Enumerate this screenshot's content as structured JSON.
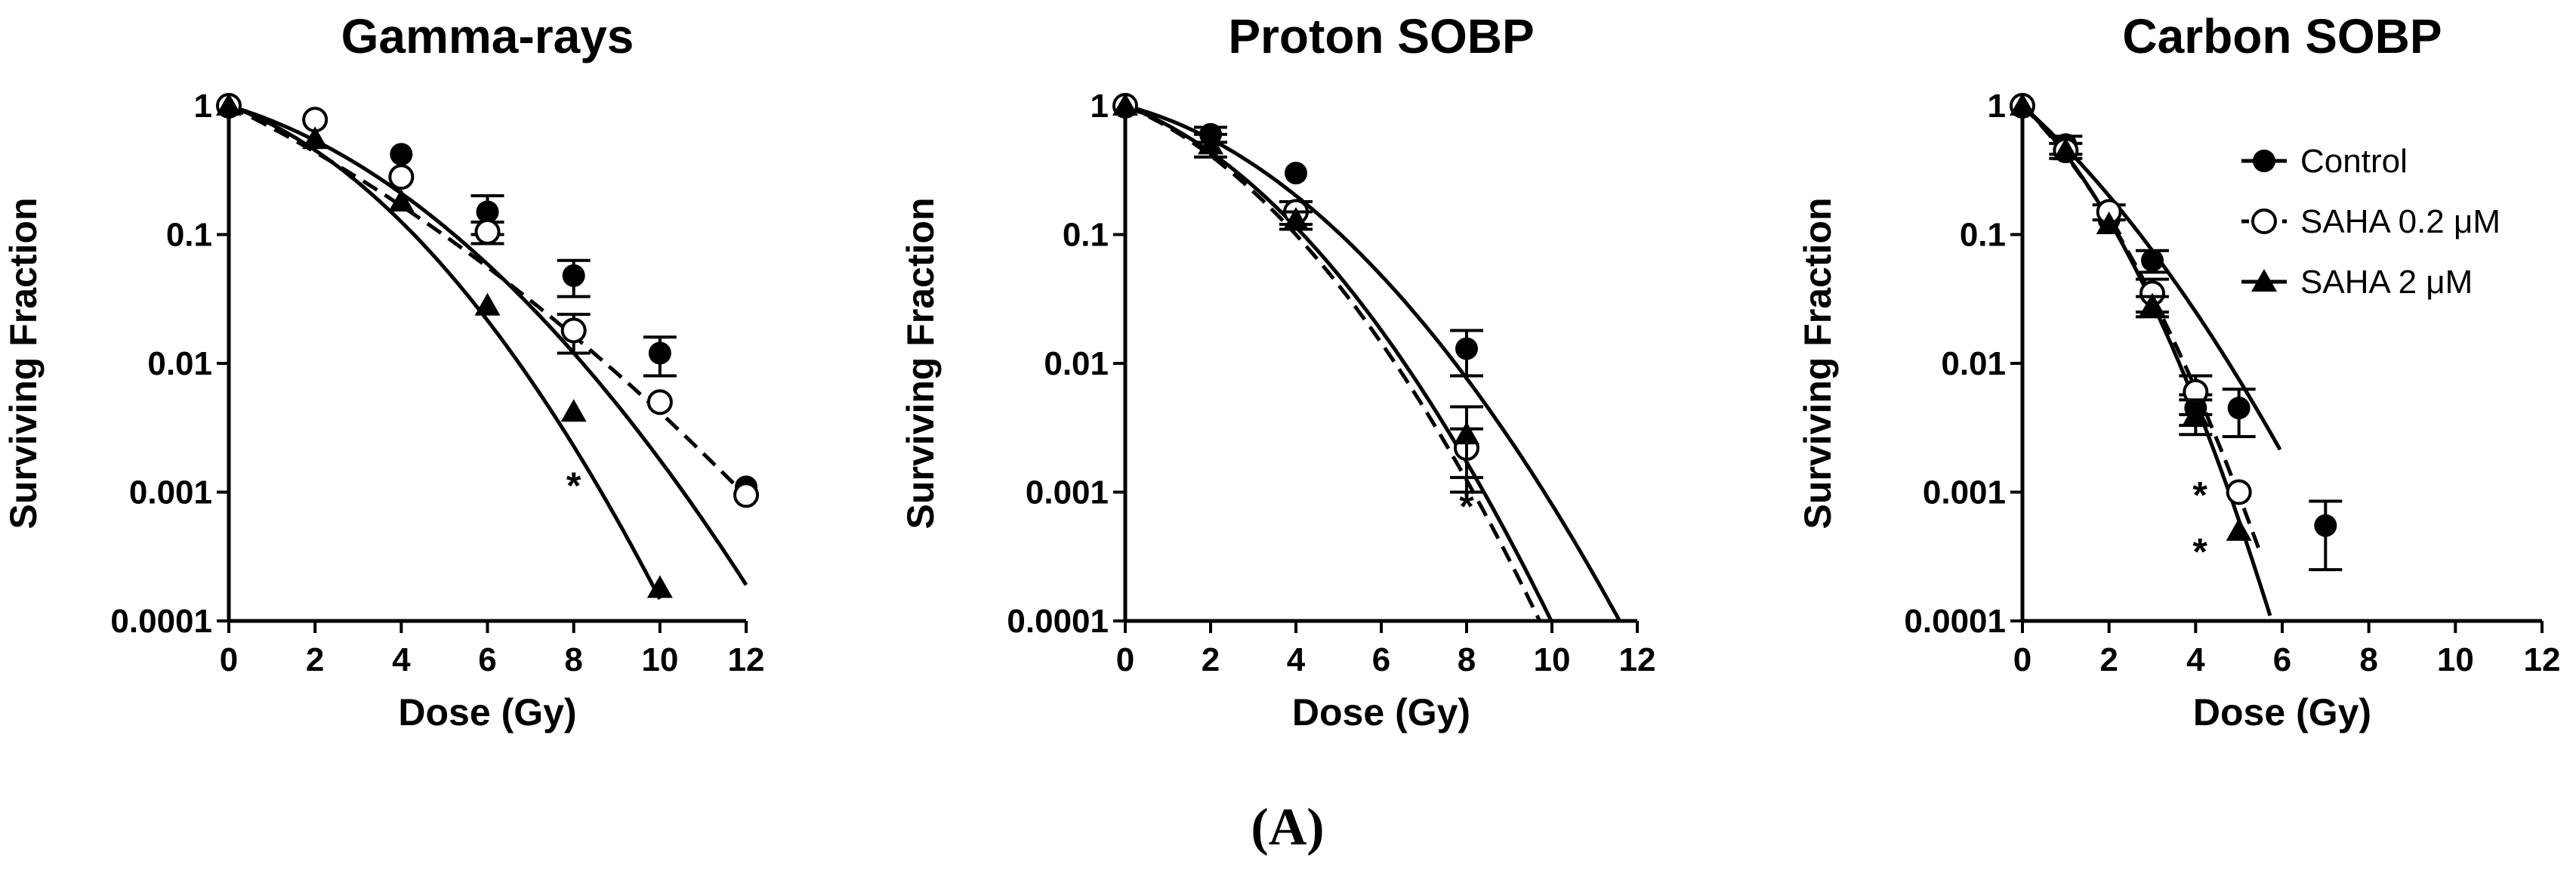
{
  "caption": "(A)",
  "chart_data": [
    {
      "type": "scatter",
      "title": "Gamma-rays",
      "xlabel": "Dose (Gy)",
      "ylabel": "Surviving Fraction",
      "xlim": [
        0,
        12
      ],
      "ylim": [
        0.0001,
        1
      ],
      "yscale": "log",
      "xticks": [
        0,
        2,
        4,
        6,
        8,
        10,
        12
      ],
      "xtick_labels": [
        "0",
        "2",
        "4",
        "6",
        "8",
        "10",
        "12"
      ],
      "yticks": [
        1,
        0.1,
        0.01,
        0.001,
        0.0001
      ],
      "ytick_labels": [
        "1",
        "0.1",
        "0.01",
        "0.001",
        "0.0001"
      ],
      "grid": false,
      "series": [
        {
          "name": "Control",
          "marker": "filled-circle",
          "line": "solid",
          "x": [
            0,
            2,
            4,
            6,
            8,
            10,
            12
          ],
          "y": [
            1,
            0.78,
            0.42,
            0.15,
            0.048,
            0.012,
            0.0011
          ],
          "yerr": [
            0,
            0,
            0,
            0.05,
            0.015,
            0.004,
            0
          ]
        },
        {
          "name": "SAHA 0.2 μM",
          "marker": "open-circle",
          "line": "dashed",
          "x": [
            0,
            2,
            4,
            6,
            8,
            10,
            12
          ],
          "y": [
            1,
            0.78,
            0.28,
            0.105,
            0.018,
            0.005,
            0.00095
          ],
          "yerr": [
            0,
            0,
            0,
            0.02,
            0.006,
            0,
            0
          ]
        },
        {
          "name": "SAHA 2 μM",
          "marker": "filled-triangle",
          "line": "solid",
          "x": [
            0,
            2,
            4,
            6,
            8,
            10
          ],
          "y": [
            1,
            0.55,
            0.18,
            0.028,
            0.0042,
            0.00018
          ],
          "yerr": [
            0,
            0,
            0,
            0,
            0,
            0
          ]
        }
      ],
      "annotations": [
        {
          "text": "*",
          "x": 8,
          "y": 0.0013
        }
      ]
    },
    {
      "type": "scatter",
      "title": "Proton SOBP",
      "xlabel": "Dose (Gy)",
      "ylabel": "Surviving Fraction",
      "xlim": [
        0,
        12
      ],
      "ylim": [
        0.0001,
        1
      ],
      "yscale": "log",
      "xticks": [
        0,
        2,
        4,
        6,
        8,
        10,
        12
      ],
      "xtick_labels": [
        "0",
        "2",
        "4",
        "6",
        "8",
        "10",
        "12"
      ],
      "yticks": [
        1,
        0.1,
        0.01,
        0.001,
        0.0001
      ],
      "ytick_labels": [
        "1",
        "0.1",
        "0.01",
        "0.001",
        "0.0001"
      ],
      "grid": false,
      "series": [
        {
          "name": "Control",
          "marker": "filled-circle",
          "line": "solid",
          "x": [
            0,
            2,
            4,
            8
          ],
          "y": [
            1,
            0.6,
            0.3,
            0.013
          ],
          "yerr": [
            0,
            0.08,
            0,
            0.005
          ]
        },
        {
          "name": "SAHA 0.2 μM",
          "marker": "open-circle",
          "line": "dashed",
          "x": [
            0,
            4,
            8
          ],
          "y": [
            1,
            0.15,
            0.0022
          ],
          "yerr": [
            0,
            0.03,
            0.0009
          ]
        },
        {
          "name": "SAHA 2 μM",
          "marker": "filled-triangle",
          "line": "solid",
          "x": [
            0,
            2,
            4,
            8
          ],
          "y": [
            1,
            0.5,
            0.13,
            0.0028
          ],
          "yerr": [
            0,
            0.1,
            0.02,
            0.0018
          ]
        }
      ],
      "annotations": [
        {
          "text": "*",
          "x": 8,
          "y": 0.0009
        }
      ]
    },
    {
      "type": "scatter",
      "title": "Carbon SOBP",
      "xlabel": "Dose (Gy)",
      "ylabel": "Surviving Fraction",
      "xlim": [
        0,
        12
      ],
      "ylim": [
        0.0001,
        1
      ],
      "yscale": "log",
      "xticks": [
        0,
        2,
        4,
        6,
        8,
        10,
        12
      ],
      "xtick_labels": [
        "0",
        "2",
        "4",
        "6",
        "8",
        "10",
        "12"
      ],
      "yticks": [
        1,
        0.1,
        0.01,
        0.001,
        0.0001
      ],
      "ytick_labels": [
        "1",
        "0.1",
        "0.01",
        "0.001",
        "0.0001"
      ],
      "grid": false,
      "legend": "top-right",
      "series": [
        {
          "name": "Control",
          "marker": "filled-circle",
          "line": "solid",
          "x": [
            0,
            1,
            2,
            3,
            4,
            5,
            7
          ],
          "y": [
            1,
            0.5,
            0.13,
            0.063,
            0.0045,
            0.0045,
            0.00055
          ],
          "yerr": [
            0,
            0.08,
            0,
            0.012,
            0.0012,
            0.0018,
            0.0003
          ]
        },
        {
          "name": "SAHA 0.2 μM",
          "marker": "open-circle",
          "line": "dashed",
          "x": [
            0,
            1,
            2,
            3,
            4,
            5
          ],
          "y": [
            1,
            0.45,
            0.15,
            0.035,
            0.006,
            0.001
          ],
          "yerr": [
            0,
            0.06,
            0.02,
            0.01,
            0.002,
            0
          ]
        },
        {
          "name": "SAHA 2 μM",
          "marker": "filled-triangle",
          "line": "solid",
          "x": [
            0,
            1,
            2,
            3,
            4,
            5
          ],
          "y": [
            1,
            0.45,
            0.12,
            0.028,
            0.004,
            0.0005
          ],
          "yerr": [
            0,
            0,
            0,
            0.005,
            0.0012,
            0
          ]
        }
      ],
      "annotations": [
        {
          "text": "*",
          "x": 4.1,
          "y": 0.0011
        },
        {
          "text": "*",
          "x": 4.1,
          "y": 0.0004
        }
      ]
    }
  ]
}
